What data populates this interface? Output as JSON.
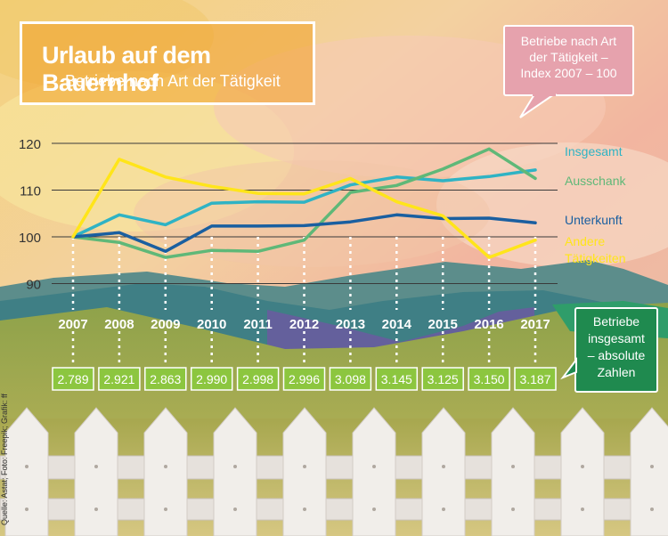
{
  "title": "Urlaub auf dem Bauernhof",
  "subtitle": "Betriebe nach Art der Tätigkeit",
  "bubble_lines": [
    "Betriebe nach Art",
    "der Tätigkeit –",
    "Index 2007 – 100"
  ],
  "side_box_lines": [
    "Betriebe",
    "insgesamt",
    "– absolute",
    "Zahlen"
  ],
  "source": "Quelle: Astat; Foto: Freepik; Grafik: ff",
  "colors": {
    "insgesamt": "#2fb3c4",
    "ausschank": "#5fb878",
    "unterkunft": "#1a5fa0",
    "andere": "#ffe51a",
    "value_box": "#8cc63f"
  },
  "chart_data": {
    "type": "line",
    "title": "Urlaub auf dem Bauernhof",
    "subtitle": "Betriebe nach Art der Tätigkeit",
    "x": [
      "2007",
      "2008",
      "2009",
      "2010",
      "2011",
      "2012",
      "2013",
      "2014",
      "2015",
      "2016",
      "2017"
    ],
    "y_ticks": [
      "90",
      "100",
      "110",
      "120"
    ],
    "ylim": [
      85,
      123
    ],
    "grid": true,
    "series": [
      {
        "name": "Insgesamt",
        "key": "insgesamt",
        "label_lines": [
          "Insgesamt"
        ],
        "values": [
          100,
          104.7,
          102.6,
          107.2,
          107.5,
          107.4,
          111.1,
          112.8,
          112.0,
          112.9,
          114.3
        ]
      },
      {
        "name": "Ausschank",
        "key": "ausschank",
        "label_lines": [
          "Ausschank"
        ],
        "values": [
          100,
          98.8,
          95.6,
          97.1,
          96.9,
          99.3,
          109.5,
          111.0,
          114.5,
          118.8,
          112.5
        ]
      },
      {
        "name": "Unterkunft",
        "key": "unterkunft",
        "label_lines": [
          "Unterkunft"
        ],
        "values": [
          100,
          100.9,
          96.9,
          102.3,
          102.3,
          102.4,
          103.2,
          104.7,
          103.9,
          104.0,
          103.0
        ]
      },
      {
        "name": "Andere Tätigkeiten",
        "key": "andere",
        "label_lines": [
          "Andere",
          "Tätigkeiten"
        ],
        "values": [
          100,
          116.6,
          112.8,
          110.8,
          109.3,
          109.2,
          112.5,
          107.5,
          104.5,
          95.6,
          99.3
        ]
      }
    ],
    "absolute_values": [
      "2.789",
      "2.921",
      "2.863",
      "2.990",
      "2.998",
      "2.996",
      "3.098",
      "3.145",
      "3.125",
      "3.150",
      "3.187"
    ]
  }
}
